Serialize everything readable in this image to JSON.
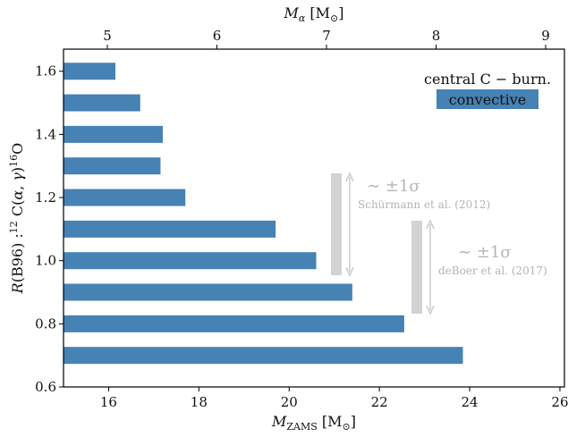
{
  "chart_data": {
    "type": "bar",
    "orientation": "horizontal",
    "y": [
      0.7,
      0.8,
      0.9,
      1.0,
      1.1,
      1.2,
      1.3,
      1.4,
      1.5,
      1.6
    ],
    "values": [
      23.85,
      22.55,
      21.4,
      20.6,
      19.7,
      17.7,
      17.15,
      17.2,
      16.7,
      16.15
    ],
    "bar_color": "#4682b4",
    "xlim": [
      15,
      26.1
    ],
    "ylim": [
      0.6,
      1.67
    ],
    "x_ticks": [
      "16",
      "18",
      "20",
      "22",
      "24",
      "26"
    ],
    "y_ticks": [
      "0.6",
      "0.8",
      "1.0",
      "1.2",
      "1.4",
      "1.6"
    ],
    "top_axis_ticks": [
      "5",
      "6",
      "7",
      "8",
      "9"
    ],
    "grid": false,
    "legend": {
      "position": "top-right",
      "title": "central C − burn.",
      "entry": "convective"
    },
    "error_indicators": [
      {
        "label": "∼ ±1σ",
        "source": "Schürmann et al. (2012)",
        "range": [
          0.95,
          1.27
        ],
        "color": "#d3d3d3"
      },
      {
        "label": "∼ ±1σ",
        "source": "deBoer et al. (2017)",
        "range": [
          0.835,
          1.12
        ],
        "color": "#d3d3d3"
      }
    ]
  }
}
